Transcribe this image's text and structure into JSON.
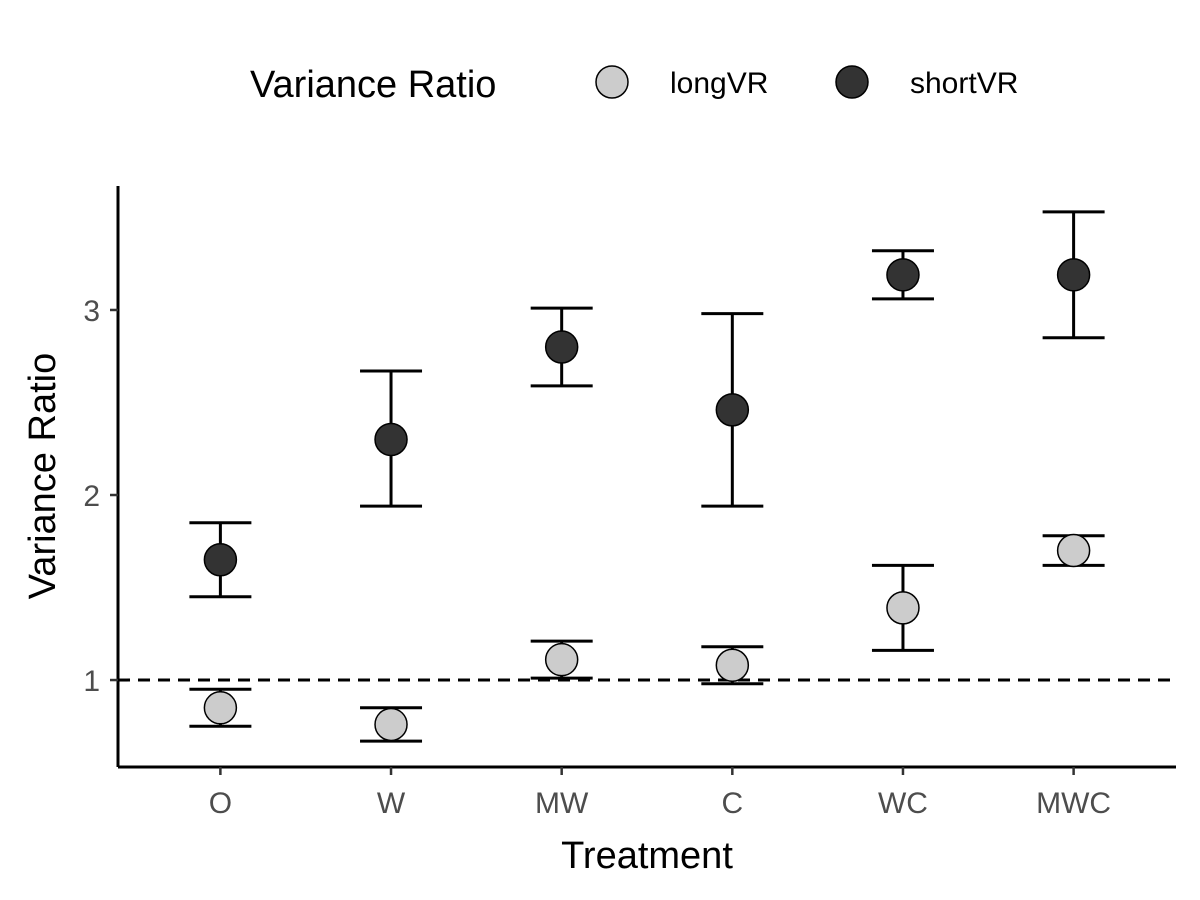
{
  "chart_data": {
    "type": "scatter",
    "title": "",
    "xlabel": "Treatment",
    "ylabel": "Variance Ratio",
    "categories": [
      "O",
      "W",
      "MW",
      "C",
      "WC",
      "MWC"
    ],
    "ylim": [
      0.53,
      3.67
    ],
    "yticks": [
      1,
      2,
      3
    ],
    "grid": false,
    "reference_line": {
      "y": 1,
      "style": "dashed"
    },
    "legend": {
      "title": "Variance Ratio",
      "position": "top"
    },
    "series": [
      {
        "name": "longVR",
        "color": "#cccccc",
        "values": [
          0.85,
          0.76,
          1.11,
          1.08,
          1.39,
          1.7
        ],
        "lower": [
          0.75,
          0.67,
          1.01,
          0.98,
          1.16,
          1.62
        ],
        "upper": [
          0.95,
          0.85,
          1.21,
          1.18,
          1.62,
          1.78
        ]
      },
      {
        "name": "shortVR",
        "color": "#333333",
        "values": [
          1.65,
          2.3,
          2.8,
          2.46,
          3.19,
          3.19
        ],
        "lower": [
          1.45,
          1.94,
          2.59,
          1.94,
          3.06,
          2.85
        ],
        "upper": [
          1.85,
          2.67,
          3.01,
          2.98,
          3.32,
          3.53
        ]
      }
    ]
  }
}
